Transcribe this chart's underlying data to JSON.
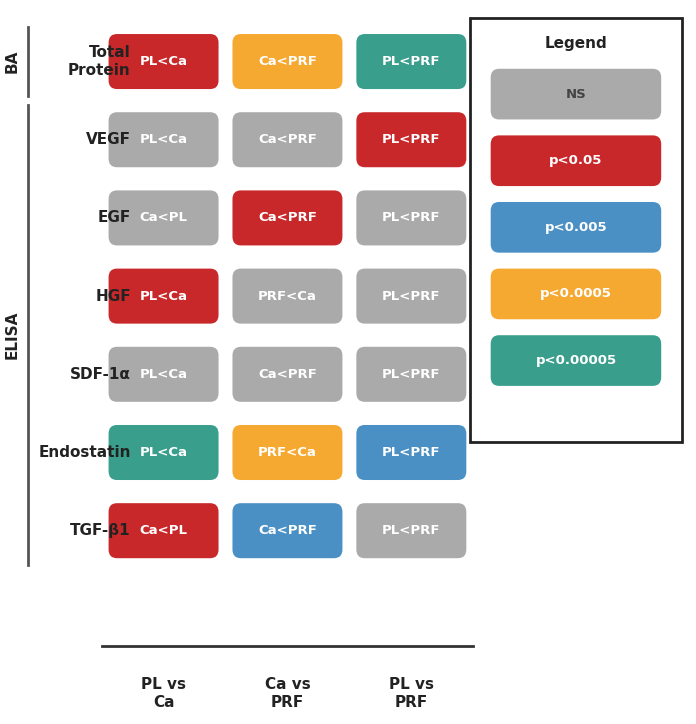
{
  "rows": [
    {
      "label": "Total\nProtein",
      "section": "BA",
      "cells": [
        {
          "text": "PL<Ca",
          "color": "#C8282A"
        },
        {
          "text": "Ca<PRF",
          "color": "#F5A931"
        },
        {
          "text": "PL<PRF",
          "color": "#3A9E8D"
        }
      ]
    },
    {
      "label": "VEGF",
      "section": "ELISA",
      "cells": [
        {
          "text": "PL<Ca",
          "color": "#AAAAAA"
        },
        {
          "text": "Ca<PRF",
          "color": "#AAAAAA"
        },
        {
          "text": "PL<PRF",
          "color": "#C8282A"
        }
      ]
    },
    {
      "label": "EGF",
      "section": "ELISA",
      "cells": [
        {
          "text": "Ca<PL",
          "color": "#AAAAAA"
        },
        {
          "text": "Ca<PRF",
          "color": "#C8282A"
        },
        {
          "text": "PL<PRF",
          "color": "#AAAAAA"
        }
      ]
    },
    {
      "label": "HGF",
      "section": "ELISA",
      "cells": [
        {
          "text": "PL<Ca",
          "color": "#C8282A"
        },
        {
          "text": "PRF<Ca",
          "color": "#AAAAAA"
        },
        {
          "text": "PL<PRF",
          "color": "#AAAAAA"
        }
      ]
    },
    {
      "label": "SDF-1α",
      "section": "ELISA",
      "cells": [
        {
          "text": "PL<Ca",
          "color": "#AAAAAA"
        },
        {
          "text": "Ca<PRF",
          "color": "#AAAAAA"
        },
        {
          "text": "PL<PRF",
          "color": "#AAAAAA"
        }
      ]
    },
    {
      "label": "Endostatin",
      "section": "ELISA",
      "cells": [
        {
          "text": "PL<Ca",
          "color": "#3A9E8D"
        },
        {
          "text": "PRF<Ca",
          "color": "#F5A931"
        },
        {
          "text": "PL<PRF",
          "color": "#4A90C4"
        }
      ]
    },
    {
      "label": "TGF-β1",
      "section": "ELISA",
      "cells": [
        {
          "text": "Ca<PL",
          "color": "#C8282A"
        },
        {
          "text": "Ca<PRF",
          "color": "#4A90C4"
        },
        {
          "text": "PL<PRF",
          "color": "#AAAAAA"
        }
      ]
    }
  ],
  "col_labels": [
    "PL vs\nCa",
    "Ca vs\nPRF",
    "PL vs\nPRF"
  ],
  "legend_items": [
    {
      "label": "NS",
      "color": "#AAAAAA"
    },
    {
      "label": "p<0.05",
      "color": "#C8282A"
    },
    {
      "label": "p<0.005",
      "color": "#4A90C4"
    },
    {
      "label": "p<0.0005",
      "color": "#F5A931"
    },
    {
      "label": "p<0.00005",
      "color": "#3A9E8D"
    }
  ],
  "bg_color": "#FFFFFF",
  "cell_text_color": "#FFFFFF",
  "label_text_color": "#222222"
}
